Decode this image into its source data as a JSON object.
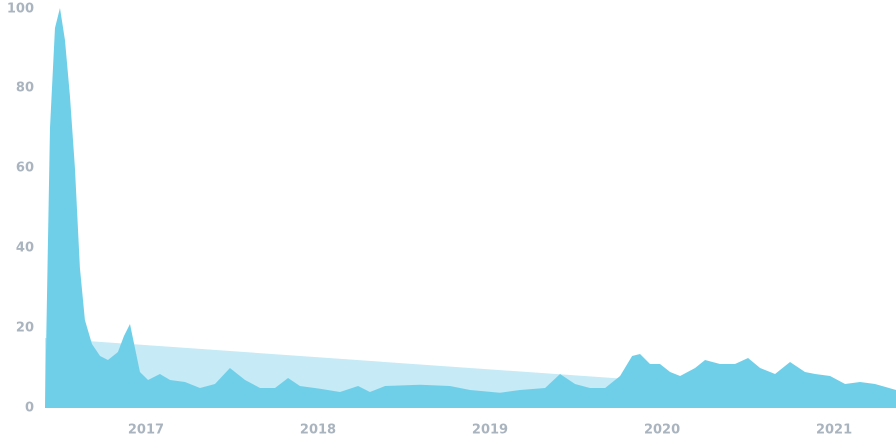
{
  "chart_data": {
    "type": "area",
    "xlim": [
      2016.413,
      2021.36
    ],
    "xticks": [
      2017,
      2018,
      2019,
      2020,
      2021
    ],
    "ylim": [
      0,
      100
    ],
    "yticks": [
      0,
      20,
      40,
      60,
      80,
      100
    ],
    "grid": false,
    "series": [
      {
        "color": "#c6eaf6",
        "x": [
          2016.413,
          2021.36
        ],
        "values": [
          17.5,
          2.5
        ]
      },
      {
        "color": "#6fcfe8",
        "x": [
          2016.413,
          2016.442,
          2016.471,
          2016.5,
          2016.529,
          2016.558,
          2016.587,
          2016.616,
          2016.645,
          2016.686,
          2016.733,
          2016.779,
          2016.837,
          2016.872,
          2016.907,
          2016.936,
          2016.965,
          2017.012,
          2017.081,
          2017.14,
          2017.227,
          2017.314,
          2017.401,
          2017.488,
          2017.576,
          2017.663,
          2017.75,
          2017.826,
          2017.895,
          2018.012,
          2018.128,
          2018.233,
          2018.302,
          2018.39,
          2018.593,
          2018.767,
          2018.884,
          2019.058,
          2019.174,
          2019.32,
          2019.407,
          2019.494,
          2019.581,
          2019.669,
          2019.756,
          2019.826,
          2019.872,
          2019.93,
          2019.988,
          2020.047,
          2020.105,
          2020.192,
          2020.25,
          2020.337,
          2020.424,
          2020.5,
          2020.57,
          2020.657,
          2020.744,
          2020.831,
          2020.89,
          2020.977,
          2021.064,
          2021.151,
          2021.238,
          2021.36
        ],
        "values": [
          0,
          70,
          95,
          100,
          92,
          78,
          60,
          35,
          22,
          16,
          13,
          12,
          14,
          18,
          21,
          15,
          9,
          7,
          8.5,
          7,
          6.5,
          5,
          6,
          10,
          7,
          5,
          5,
          7.5,
          5.5,
          4.8,
          4,
          5.5,
          4,
          5.5,
          5.8,
          5.5,
          4.5,
          3.8,
          4.5,
          5,
          8.5,
          6,
          5,
          5,
          8,
          13,
          13.5,
          11,
          11,
          9,
          8,
          10,
          12,
          11,
          11,
          12.5,
          10,
          8.5,
          11.5,
          9,
          8.5,
          8,
          6,
          6.5,
          6,
          4.5
        ]
      }
    ]
  }
}
